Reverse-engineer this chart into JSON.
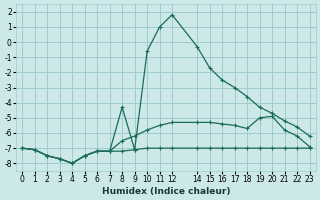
{
  "xlabel": "Humidex (Indice chaleur)",
  "background_color": "#cce8e8",
  "grid_color": "#a0cccc",
  "line_color": "#1a6b5a",
  "xlim": [
    -0.5,
    23.5
  ],
  "ylim": [
    -8.5,
    2.5
  ],
  "yticks": [
    2,
    1,
    0,
    -1,
    -2,
    -3,
    -4,
    -5,
    -6,
    -7,
    -8
  ],
  "xticks": [
    0,
    1,
    2,
    3,
    4,
    5,
    6,
    7,
    8,
    9,
    10,
    11,
    12,
    14,
    15,
    16,
    17,
    18,
    19,
    20,
    21,
    22,
    23
  ],
  "line1_x": [
    0,
    1,
    2,
    3,
    4,
    5,
    6,
    7,
    8,
    9,
    10,
    11,
    12,
    14,
    15,
    16,
    17,
    18,
    19,
    20,
    21,
    22,
    23
  ],
  "line1_y": [
    -7.0,
    -7.1,
    -7.5,
    -7.7,
    -8.0,
    -7.5,
    -7.2,
    -7.2,
    -7.2,
    -7.1,
    -7.0,
    -7.0,
    -7.0,
    -7.0,
    -7.0,
    -7.0,
    -7.0,
    -7.0,
    -7.0,
    -7.0,
    -7.0,
    -7.0,
    -7.0
  ],
  "line2_x": [
    0,
    1,
    2,
    3,
    4,
    5,
    6,
    7,
    8,
    9,
    10,
    11,
    12,
    14,
    15,
    16,
    17,
    18,
    19,
    20,
    21,
    22,
    23
  ],
  "line2_y": [
    -7.0,
    -7.1,
    -7.5,
    -7.7,
    -8.0,
    -7.5,
    -7.2,
    -7.2,
    -6.5,
    -6.2,
    -5.8,
    -5.5,
    -5.3,
    -5.3,
    -5.3,
    -5.4,
    -5.5,
    -5.7,
    -5.0,
    -4.9,
    -5.8,
    -6.2,
    -6.9
  ],
  "line3_x": [
    0,
    1,
    2,
    3,
    4,
    5,
    6,
    7,
    8,
    9,
    10,
    11,
    12,
    14,
    15,
    16,
    17,
    18,
    19,
    20,
    21,
    22,
    23
  ],
  "line3_y": [
    -7.0,
    -7.1,
    -7.5,
    -7.7,
    -8.0,
    -7.5,
    -7.2,
    -7.2,
    -4.3,
    -7.1,
    -0.6,
    1.0,
    1.8,
    -0.3,
    -1.7,
    -2.5,
    -3.0,
    -3.6,
    -4.3,
    -4.7,
    -5.2,
    -5.6,
    -6.2
  ]
}
